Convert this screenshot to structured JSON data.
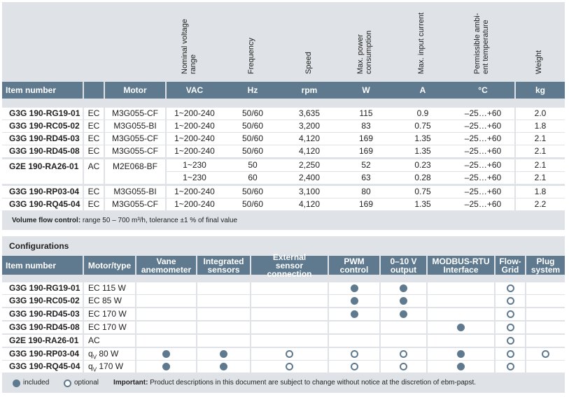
{
  "specs": {
    "rotated_headers": [
      "Nominal voltage range",
      "Frequency",
      "Speed",
      "Max. power consumption",
      "Max. input current",
      "Permissible ambi-ent temperature",
      "Weight"
    ],
    "header": [
      "Item number",
      "",
      "Motor",
      "VAC",
      "Hz",
      "rpm",
      "W",
      "A",
      "°C",
      "kg"
    ],
    "rows": [
      [
        "G3G 190-RG19-01",
        "EC",
        "M3G055-CF",
        "1~200-240",
        "50/60",
        "3,635",
        "115",
        "0.9",
        "–25…+60",
        "2.0"
      ],
      [
        "G3G 190-RC05-02",
        "EC",
        "M3G055-BI",
        "1~200-240",
        "50/60",
        "3,200",
        "83",
        "0.75",
        "–25…+60",
        "1.8"
      ],
      [
        "G3G 190-RD45-03",
        "EC",
        "M3G055-CF",
        "1~200-240",
        "50/60",
        "4,120",
        "169",
        "1.35",
        "–25…+60",
        "2.1"
      ],
      [
        "G3G 190-RD45-08",
        "EC",
        "M3G055-CF",
        "1~200-240",
        "50/60",
        "4,120",
        "169",
        "1.35",
        "–25…+60",
        "2.1"
      ],
      [
        "G2E 190-RA26-01",
        "AC",
        "M2E068-BF",
        "1~230",
        "50",
        "2,250",
        "52",
        "0.23",
        "–25…+60",
        "2.1"
      ],
      [
        "",
        "",
        "",
        "1~230",
        "60",
        "2,400",
        "63",
        "0.28",
        "–25…+60",
        "2.1"
      ],
      [
        "G3G 190-RP03-04",
        "EC",
        "M3G055-BI",
        "1~200-240",
        "50/60",
        "3,100",
        "80",
        "0.75",
        "–25…+60",
        "1.8"
      ],
      [
        "G3G 190-RQ45-04",
        "EC",
        "M3G055-CF",
        "1~200-240",
        "50/60",
        "4,120",
        "169",
        "1.35",
        "–25…+60",
        "2.2"
      ]
    ],
    "note_label": "Volume flow control:",
    "note_text": " range 50 – 700 m³/h, tolerance ±1 % of final value"
  },
  "config": {
    "title": "Configurations",
    "header": [
      "Item number",
      "Motor/type",
      "Vane anemometer",
      "Integrated sensors",
      "External sensor connection",
      "PWM control",
      "0–10 V output",
      "MODBUS-RTU Interface",
      "Flow-Grid",
      "Plug system"
    ],
    "rows": [
      {
        "item": "G3G 190-RG19-01",
        "motor": "EC 115 W",
        "marks": [
          "",
          "",
          "",
          "full",
          "full",
          "",
          "open",
          ""
        ]
      },
      {
        "item": "G3G 190-RC05-02",
        "motor": "EC 85 W",
        "marks": [
          "",
          "",
          "",
          "full",
          "full",
          "",
          "open",
          ""
        ]
      },
      {
        "item": "G3G 190-RD45-03",
        "motor": "EC 170 W",
        "marks": [
          "",
          "",
          "",
          "full",
          "full",
          "",
          "open",
          ""
        ]
      },
      {
        "item": "G3G 190-RD45-08",
        "motor": "EC 170 W",
        "marks": [
          "",
          "",
          "",
          "",
          "",
          "full",
          "open",
          ""
        ]
      },
      {
        "item": "G2E 190-RA26-01",
        "motor": "AC",
        "marks": [
          "",
          "",
          "",
          "",
          "",
          "",
          "open",
          ""
        ]
      },
      {
        "item": "G3G 190-RP03-04",
        "motor_q": "q",
        "motor_sub": "V",
        "motor_rest": " 80 W",
        "marks": [
          "full",
          "full",
          "open",
          "open",
          "open",
          "full",
          "open",
          "open"
        ]
      },
      {
        "item": "G3G 190-RQ45-04",
        "motor_q": "q",
        "motor_sub": "V",
        "motor_rest": " 170 W",
        "marks": [
          "full",
          "full",
          "open",
          "open",
          "open",
          "full",
          "open",
          ""
        ]
      }
    ],
    "legend_included": "included",
    "legend_optional": "optional",
    "important_label": "Important:",
    "important_text": " Product descriptions in this document are subject to change without notice at the discretion of ebm-papst."
  }
}
